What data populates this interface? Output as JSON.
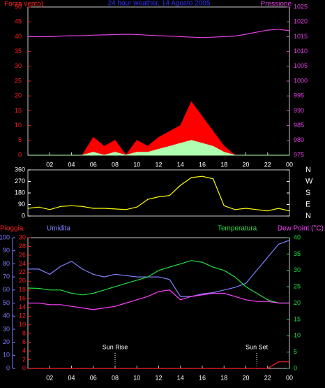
{
  "chart_data": [
    {
      "type": "line",
      "title": "24 hour weather, 14 Agosto 2005",
      "ylabel": "Forza vento)",
      "y2label": "Pressione",
      "xlim": [
        0,
        24
      ],
      "xticks": [
        {
          "value": 2,
          "label": "02"
        },
        {
          "value": 4,
          "label": "04"
        },
        {
          "value": 6,
          "label": "06"
        },
        {
          "value": 8,
          "label": "08"
        },
        10,
        12,
        14,
        16,
        18,
        20,
        22,
        {
          "value": 24,
          "label": "00"
        }
      ],
      "ylim": [
        0,
        50
      ],
      "yticks": [
        0,
        5,
        10,
        15,
        20,
        25,
        30,
        35,
        40,
        45,
        50
      ],
      "ycolor": "#ff2020",
      "y2lim": [
        975,
        1025
      ],
      "y2ticks": [
        975,
        980,
        985,
        990,
        995,
        1000,
        1005,
        1010,
        1015,
        1020,
        1025
      ],
      "y2color": "#e040e0",
      "x": [
        0,
        1,
        2,
        3,
        4,
        5,
        6,
        7,
        8,
        9,
        10,
        11,
        12,
        13,
        14,
        15,
        16,
        17,
        18,
        19,
        20,
        21,
        22,
        23,
        24
      ],
      "series": [
        {
          "color": "#ff0000",
          "fill": true,
          "values": [
            0,
            0,
            0,
            0,
            0,
            0,
            6,
            3,
            5,
            0,
            5,
            3,
            6,
            8,
            10,
            18,
            13,
            8,
            3,
            0,
            0,
            0,
            0,
            0,
            0
          ]
        },
        {
          "color": "#b0ffb0",
          "fill": true,
          "values": [
            0,
            0,
            0,
            0,
            0,
            0,
            1,
            0,
            1,
            0,
            1,
            1,
            2,
            3,
            4,
            5,
            4,
            3,
            1,
            0,
            0,
            0,
            0,
            0,
            0
          ]
        },
        {
          "color": "#e040e0",
          "axis": "y2",
          "values": [
            1015,
            1015,
            1015,
            1015.2,
            1015.3,
            1015.3,
            1015.5,
            1015.6,
            1015.7,
            1015.8,
            1015.7,
            1015.5,
            1015.3,
            1015.2,
            1015,
            1014.8,
            1014.7,
            1014.8,
            1015,
            1015.2,
            1015.8,
            1016.5,
            1017.2,
            1017.5,
            1017
          ]
        }
      ]
    },
    {
      "type": "line",
      "xlim": [
        0,
        24
      ],
      "ylim": [
        0,
        360
      ],
      "yticks": [
        0,
        90,
        180,
        270,
        360
      ],
      "ycolor": "#ffffff",
      "y2lim": [
        0,
        360
      ],
      "y2ticks": [
        {
          "value": 0,
          "label": "N"
        },
        {
          "value": 90,
          "label": "E"
        },
        {
          "value": 180,
          "label": "S"
        },
        {
          "value": 270,
          "label": "W"
        },
        {
          "value": 360,
          "label": "N"
        }
      ],
      "y2color": "#ffffff",
      "x": [
        0,
        1,
        2,
        3,
        4,
        5,
        6,
        7,
        8,
        9,
        10,
        11,
        12,
        13,
        14,
        15,
        16,
        17,
        18,
        19,
        20,
        21,
        22,
        23,
        24
      ],
      "series": [
        {
          "color": "#ffff00",
          "values": [
            60,
            70,
            50,
            75,
            80,
            75,
            60,
            60,
            55,
            50,
            70,
            130,
            150,
            160,
            240,
            300,
            310,
            290,
            80,
            50,
            60,
            50,
            40,
            60,
            40
          ]
        }
      ]
    },
    {
      "type": "line",
      "xlim": [
        0,
        24
      ],
      "xticks": [
        {
          "value": 2,
          "label": "02"
        },
        {
          "value": 4,
          "label": "04"
        },
        {
          "value": 6,
          "label": "06"
        },
        {
          "value": 8,
          "label": "08"
        },
        10,
        12,
        14,
        16,
        18,
        20,
        22,
        {
          "value": 24,
          "label": "00"
        }
      ],
      "ylim": [
        0,
        30
      ],
      "yticks": [
        0,
        2,
        4,
        6,
        8,
        10,
        12,
        14,
        16,
        18,
        20,
        22,
        24,
        26,
        28,
        30
      ],
      "ycolor": "#ff2020",
      "y2lim": [
        0,
        40
      ],
      "y2ticks": [
        0,
        5,
        10,
        15,
        20,
        25,
        30,
        35,
        40
      ],
      "y2color": "#20e040",
      "y3lim": [
        0,
        100
      ],
      "y3ticks": [
        0,
        10,
        20,
        30,
        40,
        50,
        60,
        70,
        80,
        90,
        100
      ],
      "y3color": "#8080ff",
      "annotations": [
        {
          "text": "Sun Rise",
          "x": 8
        },
        {
          "text": "Sun Set",
          "x": 21
        }
      ],
      "x": [
        0,
        1,
        2,
        3,
        4,
        5,
        6,
        7,
        8,
        9,
        10,
        11,
        12,
        13,
        14,
        15,
        16,
        17,
        18,
        19,
        20,
        21,
        22,
        23,
        24
      ],
      "series": [
        {
          "name": "Pioggia",
          "color": "#ff2020",
          "axis": "y",
          "values": [
            0,
            0,
            0,
            0,
            0,
            0,
            0,
            0,
            0,
            0,
            0,
            0,
            0,
            0,
            0,
            0,
            0,
            0,
            0,
            0,
            0,
            0,
            0,
            1.5,
            1.5
          ]
        },
        {
          "name": "Umidita",
          "color": "#8080ff",
          "axis": "y3",
          "values": [
            76,
            76,
            72,
            78,
            82,
            76,
            72,
            70,
            72,
            71,
            70,
            70,
            70,
            68,
            55,
            55,
            57,
            58,
            60,
            62,
            65,
            75,
            85,
            95,
            98
          ]
        },
        {
          "name": "Temperatura",
          "color": "#20e040",
          "axis": "y2",
          "values": [
            24.6,
            24.5,
            24,
            24,
            23,
            22.5,
            23,
            24,
            25,
            26,
            27,
            28,
            30,
            31,
            32,
            33,
            32.5,
            31,
            30,
            28,
            25,
            23,
            21,
            20,
            20
          ]
        },
        {
          "name": "Dew Point (°C)",
          "color": "#ff40ff",
          "axis": "y2",
          "values": [
            20,
            20,
            19.5,
            19.5,
            19,
            18.5,
            18,
            18.5,
            19,
            20,
            21,
            22,
            23.5,
            24,
            21,
            22,
            22.5,
            23,
            23,
            22,
            21,
            20.5,
            20.5,
            20,
            20
          ]
        }
      ]
    }
  ]
}
